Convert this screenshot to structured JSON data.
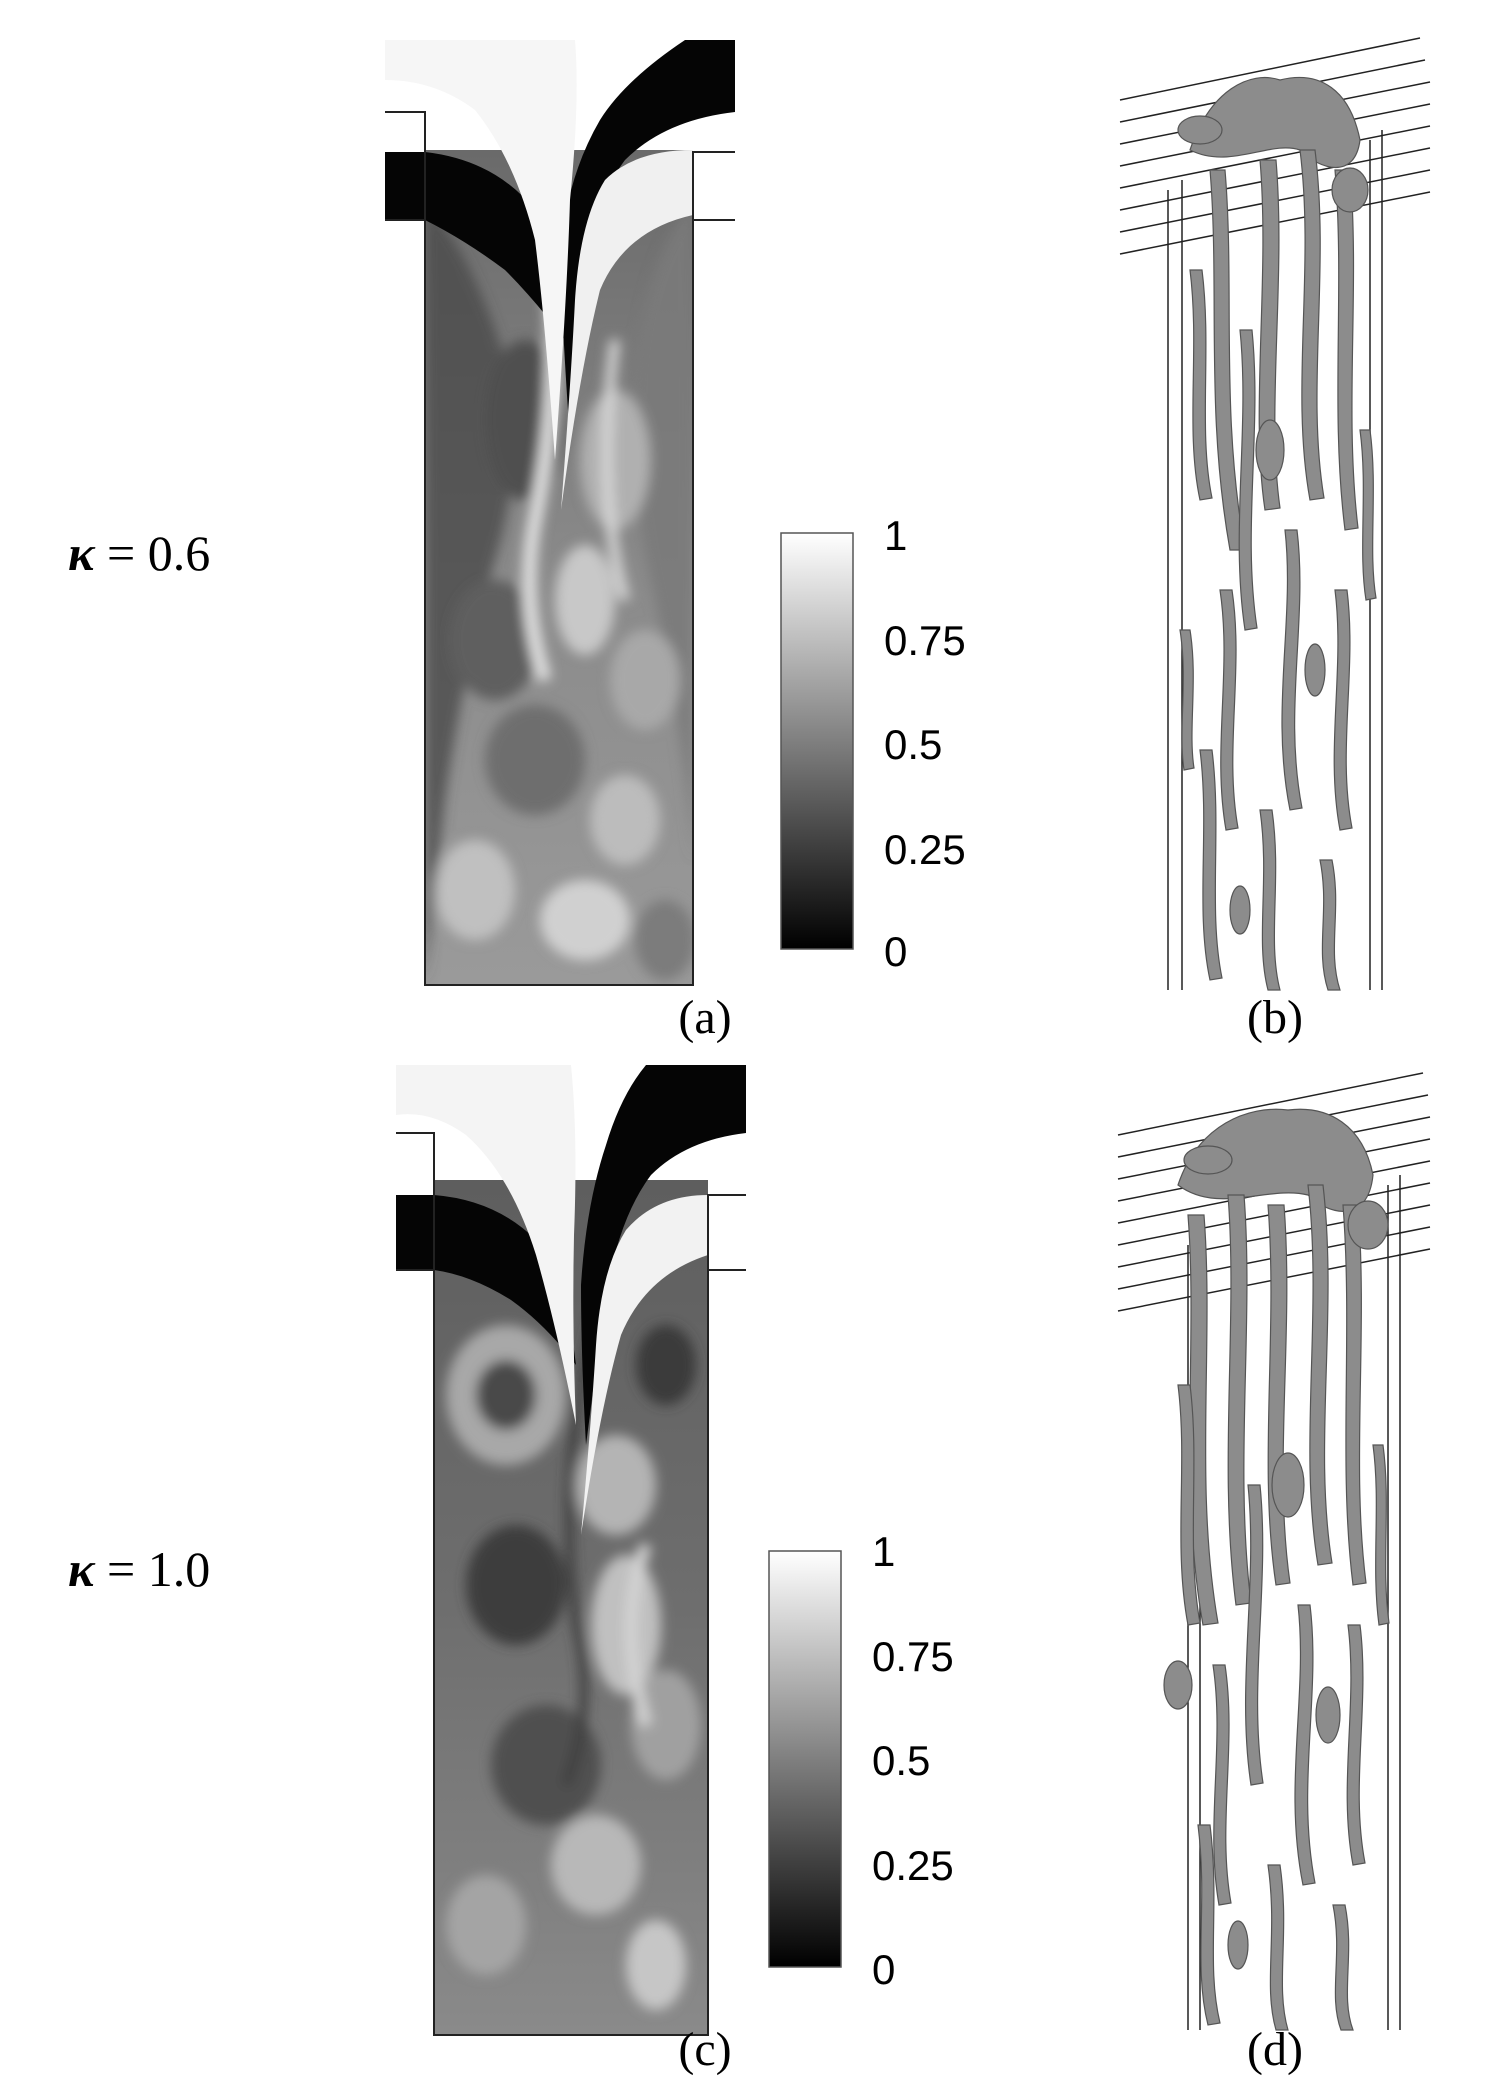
{
  "rows": [
    {
      "label_symbol": "κ",
      "label_value": " = 0.6",
      "field_caption": "(a)",
      "iso_caption": "(b)",
      "colorbar_ticks": [
        "1",
        "0.75",
        "0.5",
        "0.25",
        "0"
      ]
    },
    {
      "label_symbol": "κ",
      "label_value": " = 1.0",
      "field_caption": "(c)",
      "iso_caption": "(d)",
      "colorbar_ticks": [
        "1",
        "0.75",
        "0.5",
        "0.25",
        "0"
      ]
    }
  ],
  "colorbar": {
    "min": 0,
    "max": 1,
    "tick_values": [
      1,
      0.75,
      0.5,
      0.25,
      0
    ],
    "colormap": "grayscale",
    "low_color": "#000000",
    "high_color": "#ffffff"
  },
  "isosurface_color": "#8c8c8c"
}
